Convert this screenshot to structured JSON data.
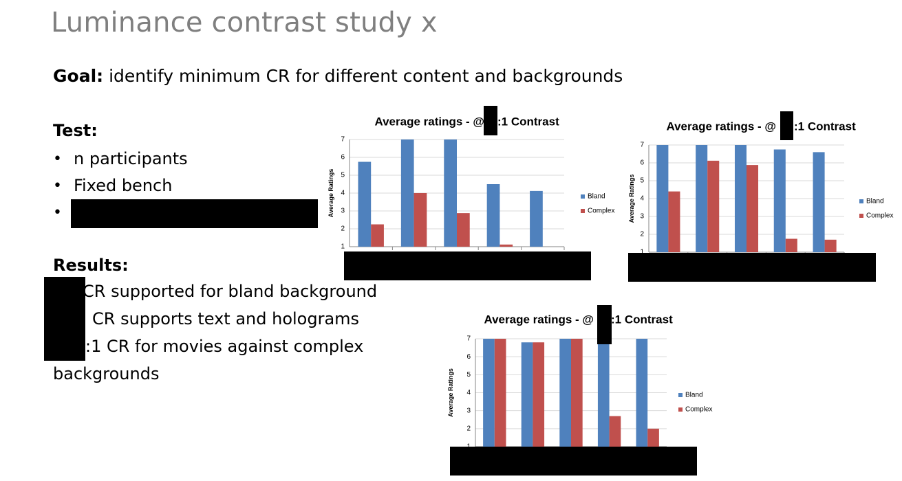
{
  "slide": {
    "title": "Luminance contrast study x",
    "goal_label": "Goal:",
    "goal_text": " identify minimum CR for different content and backgrounds",
    "test_heading": "Test:",
    "test_items": [
      "n participants",
      "Fixed bench",
      ""
    ],
    "results_heading": "Results:",
    "results_lines": [
      "CR supported for bland background",
      "CR supports text and holograms",
      ":1 CR for movies against complex",
      "backgrounds"
    ]
  },
  "colors": {
    "bland": "#4f81bd",
    "complex": "#c0504d",
    "title": "#7f7f7f",
    "grid": "#d9d9d9",
    "axis": "#868686"
  },
  "chart_data": [
    {
      "type": "bar",
      "title_prefix": "Average ratings - @",
      "title_suffix": ":1 Contrast",
      "ylabel": "Average Ratings",
      "ylim": [
        1,
        7
      ],
      "yticks": [
        1,
        2,
        3,
        4,
        5,
        6,
        7
      ],
      "grid": true,
      "legend": "right",
      "series": [
        {
          "name": "Bland",
          "color": "#4f81bd",
          "values": [
            5.75,
            7.0,
            7.0,
            4.5,
            4.12
          ]
        },
        {
          "name": "Complex",
          "color": "#c0504d",
          "values": [
            2.25,
            4.0,
            2.88,
            1.12,
            null
          ]
        }
      ]
    },
    {
      "type": "bar",
      "title_prefix": "Average ratings - @",
      "title_suffix": ":1 Contrast",
      "ylabel": "Average Ratings",
      "ylim": [
        1,
        7
      ],
      "yticks": [
        1,
        2,
        3,
        4,
        5,
        6,
        7
      ],
      "grid": true,
      "legend": "right",
      "series": [
        {
          "name": "Bland",
          "color": "#4f81bd",
          "values": [
            7.0,
            7.0,
            7.0,
            6.75,
            6.6
          ]
        },
        {
          "name": "Complex",
          "color": "#c0504d",
          "values": [
            4.4,
            6.12,
            5.88,
            1.75,
            1.7
          ]
        }
      ]
    },
    {
      "type": "bar",
      "title_prefix": "Average ratings - @",
      "title_suffix": ":1 Contrast",
      "ylabel": "Average Ratings",
      "ylim": [
        1,
        7
      ],
      "yticks": [
        1,
        2,
        3,
        4,
        5,
        6,
        7
      ],
      "grid": true,
      "legend": "right",
      "series": [
        {
          "name": "Bland",
          "color": "#4f81bd",
          "values": [
            7.0,
            6.8,
            7.0,
            6.9,
            7.0
          ]
        },
        {
          "name": "Complex",
          "color": "#c0504d",
          "values": [
            7.0,
            6.8,
            7.0,
            2.7,
            2.0
          ]
        }
      ]
    }
  ]
}
